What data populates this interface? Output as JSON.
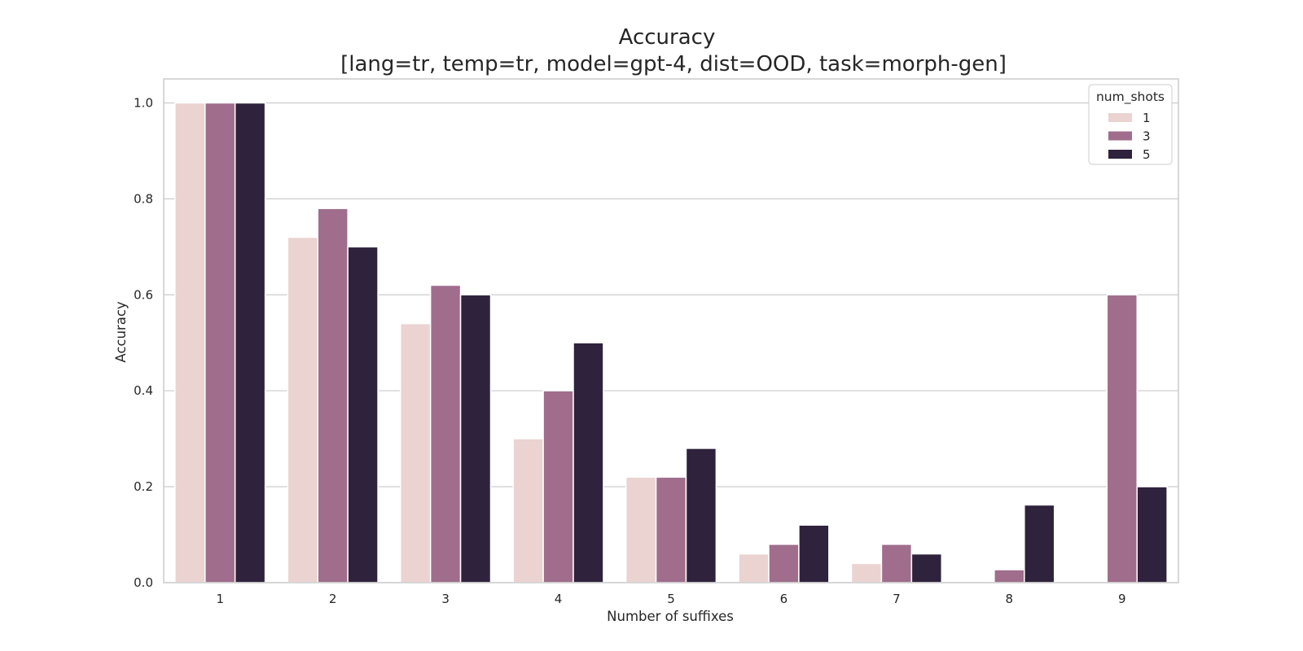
{
  "chart_data": {
    "type": "bar",
    "title": "Accuracy",
    "subtitle": "[lang=tr, temp=tr, model=gpt-4, dist=OOD, task=morph-gen]",
    "xlabel": "Number of suffixes",
    "ylabel": "Accuracy",
    "categories": [
      "1",
      "2",
      "3",
      "4",
      "5",
      "6",
      "7",
      "8",
      "9"
    ],
    "ylim": [
      0,
      1.05
    ],
    "yticks": [
      "0.0",
      "0.2",
      "0.4",
      "0.6",
      "0.8",
      "1.0"
    ],
    "grid": true,
    "legend": {
      "title": "num_shots",
      "position": "top-right"
    },
    "series": [
      {
        "name": "1",
        "color": "#ead3d1",
        "values": [
          1.0,
          0.72,
          0.54,
          0.3,
          0.22,
          0.06,
          0.04,
          0.0,
          0.0
        ]
      },
      {
        "name": "3",
        "color": "#a06d8c",
        "values": [
          1.0,
          0.78,
          0.62,
          0.4,
          0.22,
          0.08,
          0.08,
          0.027,
          0.6
        ]
      },
      {
        "name": "5",
        "color": "#2f223c",
        "values": [
          1.0,
          0.7,
          0.6,
          0.5,
          0.28,
          0.12,
          0.06,
          0.162,
          0.2
        ]
      }
    ]
  }
}
